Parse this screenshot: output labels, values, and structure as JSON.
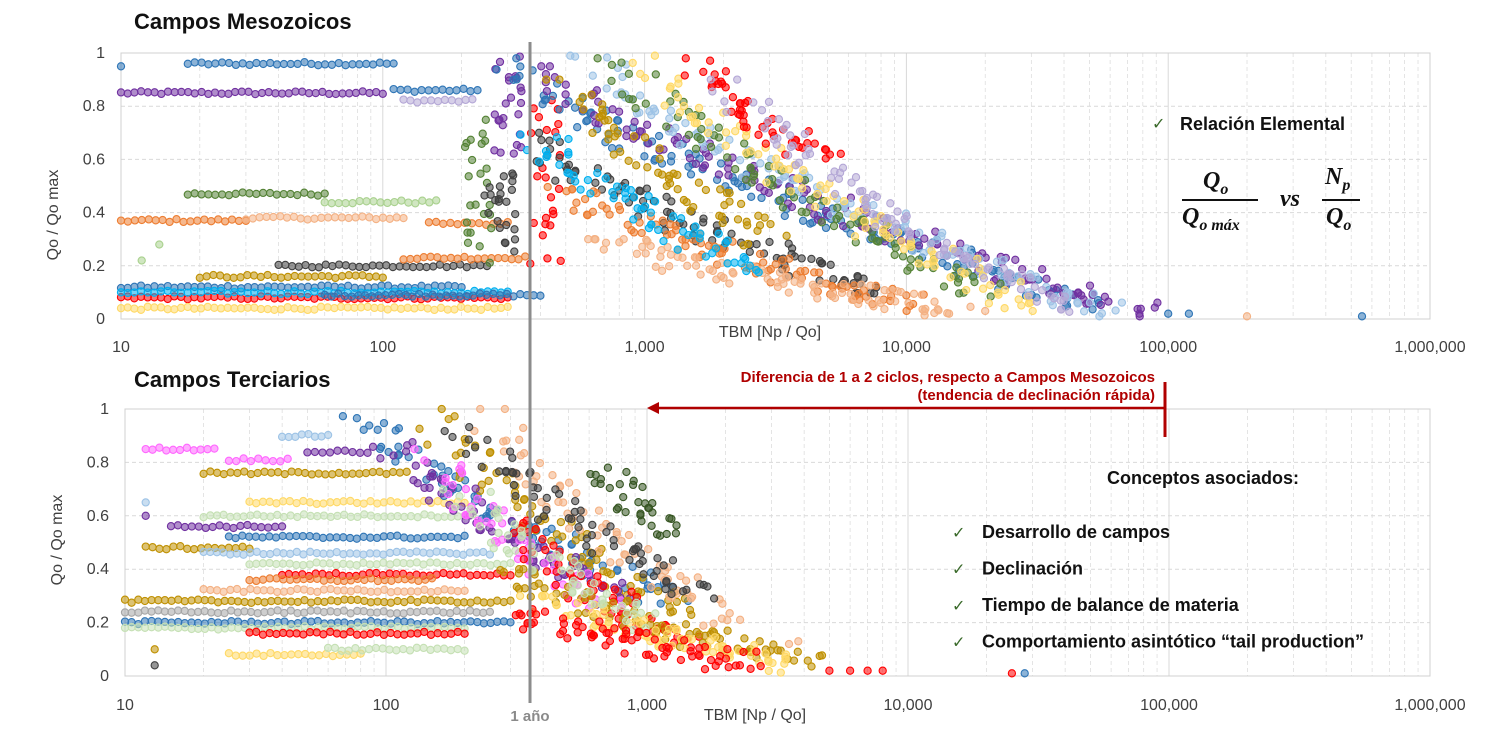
{
  "colors": {
    "vline": "#8c8c8c",
    "annotation": "#b00000",
    "check": "#3a6a2a",
    "grid": "#d9d9d9",
    "palette_top": [
      "#2e75b6",
      "#9dc3e6",
      "#ed7d31",
      "#f4b183",
      "#7030a0",
      "#b4a7d6",
      "#404040",
      "#a6a6a6",
      "#548235",
      "#a9d18e",
      "#bf9000",
      "#ffd966",
      "#ff0000",
      "#00b0f0"
    ],
    "palette_bottom": [
      "#2e75b6",
      "#9dc3e6",
      "#ed7d31",
      "#f4b183",
      "#7030a0",
      "#b4a7d6",
      "#404040",
      "#a6a6a6",
      "#375623",
      "#c5e0b4",
      "#bf9000",
      "#ffd966",
      "#ff0000",
      "#ff66ff"
    ]
  },
  "vertical_marker": {
    "x_value": 365,
    "label": "1 año"
  },
  "annotation": {
    "line1": "Diferencia de 1 a 2 ciclos, respecto a Campos Mesozoicos",
    "line2": "(tendencia de declinación rápida)",
    "arrow_from_x": 100000,
    "arrow_to_x": 1000
  },
  "sidebar_top": {
    "check": "✓",
    "label": "Relación Elemental",
    "formula": {
      "num_left": "Q",
      "num_left_sub": "o",
      "den_left": "Q",
      "den_left_sub": "o máx",
      "vs": "vs",
      "num_right": "N",
      "num_right_sub": "p",
      "den_right": "Q",
      "den_right_sub": "o"
    }
  },
  "sidebar_bottom": {
    "heading": "Conceptos asociados:",
    "check": "✓",
    "items": [
      "Desarrollo de campos",
      "Declinación",
      "Tiempo de balance de materia",
      "Comportamiento asintótico “tail production”"
    ]
  },
  "chart_data": [
    {
      "type": "scatter",
      "title": "Campos Mesozoicos",
      "xlabel": "TBM [Np / Qo]",
      "ylabel": "Qo / Qo max",
      "xscale": "log",
      "xlim": [
        10,
        1000000
      ],
      "ylim": [
        0,
        1
      ],
      "grid": true,
      "xticks": [
        "10",
        "100",
        "1,000",
        "10,000",
        "100,000",
        "1,000,000"
      ],
      "yticks": [
        "0",
        "0.2",
        "0.4",
        "0.6",
        "0.8",
        "1"
      ],
      "clusters": [
        {
          "kind": "h",
          "x": [
            10,
            100
          ],
          "y": 0.85,
          "c": 4
        },
        {
          "kind": "h",
          "x": [
            18,
            110
          ],
          "y": 0.96,
          "c": 0
        },
        {
          "kind": "h",
          "x": [
            110,
            230
          ],
          "y": 0.86,
          "c": 0
        },
        {
          "kind": "h",
          "x": [
            120,
            220
          ],
          "y": 0.82,
          "c": 5
        },
        {
          "kind": "h",
          "x": [
            10,
            30
          ],
          "y": 0.37,
          "c": 2
        },
        {
          "kind": "h",
          "x": [
            30,
            120
          ],
          "y": 0.38,
          "c": 3
        },
        {
          "kind": "h",
          "x": [
            18,
            60
          ],
          "y": 0.47,
          "c": 8
        },
        {
          "kind": "h",
          "x": [
            60,
            160
          ],
          "y": 0.44,
          "c": 9
        },
        {
          "kind": "h",
          "x": [
            10,
            200
          ],
          "y": 0.12,
          "c": 0
        },
        {
          "kind": "h",
          "x": [
            10,
            300
          ],
          "y": 0.08,
          "c": 12
        },
        {
          "kind": "h",
          "x": [
            10,
            300
          ],
          "y": 0.04,
          "c": 11
        },
        {
          "kind": "h",
          "x": [
            40,
            250
          ],
          "y": 0.2,
          "c": 6
        },
        {
          "kind": "h",
          "x": [
            120,
            350
          ],
          "y": 0.23,
          "c": 2
        },
        {
          "kind": "h",
          "x": [
            20,
            100
          ],
          "y": 0.16,
          "c": 10
        },
        {
          "kind": "h",
          "x": [
            10,
            300
          ],
          "y": 0.1,
          "c": 13
        },
        {
          "kind": "h",
          "x": [
            60,
            400
          ],
          "y": 0.09,
          "c": 0
        },
        {
          "kind": "h",
          "x": [
            150,
            300
          ],
          "y": 0.36,
          "c": 2
        },
        {
          "kind": "v",
          "x": 230,
          "y": [
            0.2,
            0.75
          ],
          "c": 8
        },
        {
          "kind": "v",
          "x": 280,
          "y": [
            0.25,
            0.55
          ],
          "c": 6
        },
        {
          "kind": "v",
          "x": 300,
          "y": [
            0.6,
            1.0
          ],
          "c": 4
        },
        {
          "kind": "v",
          "x": 420,
          "y": [
            0.2,
            0.9
          ],
          "c": 12
        },
        {
          "kind": "d",
          "x": [
            300,
            50000
          ],
          "y": [
            0.98,
            0.05
          ],
          "c": 0
        },
        {
          "kind": "d",
          "x": [
            400,
            80000
          ],
          "y": [
            0.95,
            0.03
          ],
          "c": 4
        },
        {
          "kind": "d",
          "x": [
            600,
            60000
          ],
          "y": [
            0.99,
            0.03
          ],
          "c": 1
        },
        {
          "kind": "d",
          "x": [
            800,
            20000
          ],
          "y": [
            0.98,
            0.1
          ],
          "c": 8
        },
        {
          "kind": "d",
          "x": [
            1000,
            30000
          ],
          "y": [
            0.99,
            0.05
          ],
          "c": 11
        },
        {
          "kind": "d",
          "x": [
            1500,
            5000
          ],
          "y": [
            0.98,
            0.6
          ],
          "c": 12
        },
        {
          "kind": "d",
          "x": [
            350,
            8000
          ],
          "y": [
            0.7,
            0.1
          ],
          "c": 6
        },
        {
          "kind": "d",
          "x": [
            500,
            10000
          ],
          "y": [
            0.5,
            0.05
          ],
          "c": 2
        },
        {
          "kind": "d",
          "x": [
            700,
            15000
          ],
          "y": [
            0.3,
            0.03
          ],
          "c": 3
        },
        {
          "kind": "d",
          "x": [
            500,
            3000
          ],
          "y": [
            0.9,
            0.3
          ],
          "c": 10
        },
        {
          "kind": "d",
          "x": [
            2000,
            40000
          ],
          "y": [
            0.9,
            0.04
          ],
          "c": 5
        },
        {
          "kind": "d",
          "x": [
            400,
            2500
          ],
          "y": [
            0.7,
            0.2
          ],
          "c": 13
        }
      ],
      "points": [
        {
          "x": 10,
          "y": 0.95,
          "c": 0
        },
        {
          "x": 100000,
          "y": 0.02,
          "c": 0
        },
        {
          "x": 120000,
          "y": 0.02,
          "c": 0
        },
        {
          "x": 200000,
          "y": 0.01,
          "c": 3
        },
        {
          "x": 550000,
          "y": 0.01,
          "c": 0
        },
        {
          "x": 20000,
          "y": 0.03,
          "c": 3
        },
        {
          "x": 14,
          "y": 0.28,
          "c": 9
        },
        {
          "x": 12,
          "y": 0.22,
          "c": 9
        }
      ]
    },
    {
      "type": "scatter",
      "title": "Campos Terciarios",
      "xlabel": "TBM [Np / Qo]",
      "ylabel": "Qo / Qo max",
      "xscale": "log",
      "xlim": [
        10,
        1000000
      ],
      "ylim": [
        0,
        1
      ],
      "grid": true,
      "xticks": [
        "10",
        "100",
        "1,000",
        "10,000",
        "100,000",
        "1,000,000"
      ],
      "yticks": [
        "0",
        "0.2",
        "0.4",
        "0.6",
        "0.8",
        "1"
      ],
      "clusters": [
        {
          "kind": "h",
          "x": [
            12,
            22
          ],
          "y": 0.85,
          "c": 13
        },
        {
          "kind": "h",
          "x": [
            25,
            42
          ],
          "y": 0.81,
          "c": 13
        },
        {
          "kind": "h",
          "x": [
            40,
            60
          ],
          "y": 0.9,
          "c": 1
        },
        {
          "kind": "h",
          "x": [
            50,
            85
          ],
          "y": 0.84,
          "c": 4
        },
        {
          "kind": "h",
          "x": [
            20,
            120
          ],
          "y": 0.76,
          "c": 10
        },
        {
          "kind": "h",
          "x": [
            30,
            200
          ],
          "y": 0.65,
          "c": 11
        },
        {
          "kind": "h",
          "x": [
            20,
            200
          ],
          "y": 0.6,
          "c": 9
        },
        {
          "kind": "h",
          "x": [
            15,
            40
          ],
          "y": 0.56,
          "c": 4
        },
        {
          "kind": "h",
          "x": [
            25,
            200
          ],
          "y": 0.52,
          "c": 0
        },
        {
          "kind": "h",
          "x": [
            12,
            30
          ],
          "y": 0.48,
          "c": 10
        },
        {
          "kind": "h",
          "x": [
            20,
            250
          ],
          "y": 0.46,
          "c": 1
        },
        {
          "kind": "h",
          "x": [
            30,
            300
          ],
          "y": 0.42,
          "c": 9
        },
        {
          "kind": "h",
          "x": [
            40,
            300
          ],
          "y": 0.38,
          "c": 12
        },
        {
          "kind": "h",
          "x": [
            30,
            150
          ],
          "y": 0.36,
          "c": 2
        },
        {
          "kind": "h",
          "x": [
            20,
            200
          ],
          "y": 0.32,
          "c": 3
        },
        {
          "kind": "h",
          "x": [
            10,
            300
          ],
          "y": 0.28,
          "c": 10
        },
        {
          "kind": "h",
          "x": [
            10,
            250
          ],
          "y": 0.24,
          "c": 7
        },
        {
          "kind": "h",
          "x": [
            10,
            300
          ],
          "y": 0.2,
          "c": 0
        },
        {
          "kind": "h",
          "x": [
            10,
            200
          ],
          "y": 0.18,
          "c": 9
        },
        {
          "kind": "h",
          "x": [
            30,
            200
          ],
          "y": 0.16,
          "c": 12
        },
        {
          "kind": "h",
          "x": [
            25,
            80
          ],
          "y": 0.08,
          "c": 11
        },
        {
          "kind": "h",
          "x": [
            60,
            200
          ],
          "y": 0.1,
          "c": 9
        },
        {
          "kind": "d",
          "x": [
            80,
            1200
          ],
          "y": [
            1.0,
            0.3
          ],
          "c": 0
        },
        {
          "kind": "d",
          "x": [
            150,
            1500
          ],
          "y": [
            1.0,
            0.2
          ],
          "c": 10
        },
        {
          "kind": "d",
          "x": [
            250,
            2000
          ],
          "y": [
            1.0,
            0.2
          ],
          "c": 3
        },
        {
          "kind": "d",
          "x": [
            100,
            800
          ],
          "y": [
            0.9,
            0.3
          ],
          "c": 4
        },
        {
          "kind": "d",
          "x": [
            150,
            700
          ],
          "y": [
            0.85,
            0.25
          ],
          "c": 13
        },
        {
          "kind": "d",
          "x": [
            200,
            1600
          ],
          "y": [
            0.95,
            0.3
          ],
          "c": 6
        },
        {
          "kind": "d",
          "x": [
            300,
            1500
          ],
          "y": [
            0.6,
            0.1
          ],
          "c": 12
        },
        {
          "kind": "d",
          "x": [
            300,
            4000
          ],
          "y": [
            0.4,
            0.05
          ],
          "c": 10
        },
        {
          "kind": "d",
          "x": [
            400,
            3500
          ],
          "y": [
            0.3,
            0.05
          ],
          "c": 11
        },
        {
          "kind": "d",
          "x": [
            700,
            1200
          ],
          "y": [
            0.78,
            0.55
          ],
          "c": 8
        },
        {
          "kind": "d",
          "x": [
            200,
            1000
          ],
          "y": [
            0.7,
            0.2
          ],
          "c": 9
        },
        {
          "kind": "d",
          "x": [
            300,
            2500
          ],
          "y": [
            0.25,
            0.05
          ],
          "c": 12
        }
      ],
      "points": [
        {
          "x": 5000,
          "y": 0.02,
          "c": 12
        },
        {
          "x": 6000,
          "y": 0.02,
          "c": 12
        },
        {
          "x": 7000,
          "y": 0.02,
          "c": 12
        },
        {
          "x": 8000,
          "y": 0.02,
          "c": 12
        },
        {
          "x": 25000,
          "y": 0.01,
          "c": 12
        },
        {
          "x": 28000,
          "y": 0.01,
          "c": 0
        },
        {
          "x": 3500,
          "y": 0.12,
          "c": 3
        },
        {
          "x": 3800,
          "y": 0.13,
          "c": 3
        },
        {
          "x": 12,
          "y": 0.65,
          "c": 1
        },
        {
          "x": 12,
          "y": 0.6,
          "c": 4
        },
        {
          "x": 13,
          "y": 0.04,
          "c": 6
        },
        {
          "x": 13,
          "y": 0.1,
          "c": 10
        }
      ]
    }
  ]
}
